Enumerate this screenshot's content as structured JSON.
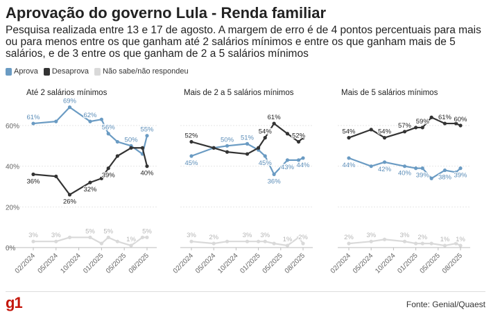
{
  "title": "Aprovação do governo Lula - Renda familiar",
  "subtitle": "Pesquisa realizada entre 13 e 17 de agosto. A margem de erro é de 4 pontos percentuais para mais ou para menos entre os que ganham até 2 salários mínimos e entre os que ganham mais de 5 salários, e de 3 entre os que ganham de 2 a 5 salários mínimos",
  "legend": [
    {
      "label": "Aprova",
      "color": "#6a9bc3"
    },
    {
      "label": "Desaprova",
      "color": "#333333"
    },
    {
      "label": "Não sabe/não respondeu",
      "color": "#d9d9d9"
    }
  ],
  "source": "Fonte: Genial/Quaest",
  "logo": "g1",
  "chart_data": [
    {
      "type": "line",
      "panel_title": "Até 2 salários mínimos",
      "x_ticks": [
        "02/2024",
        "05/2024",
        "10/2024",
        "01/2025",
        "05/2025",
        "08/2025"
      ],
      "y_ticks": [
        "0%",
        "20%",
        "40%",
        "60%"
      ],
      "ylim": [
        0,
        70
      ],
      "series": [
        {
          "name": "Aprova",
          "color": "#6a9bc3",
          "x": [
            0,
            1,
            1.6,
            2.5,
            3,
            3.3,
            3.7,
            4.3,
            4.8,
            5
          ],
          "y": [
            61,
            62,
            69,
            62,
            63,
            56,
            52,
            50,
            46,
            55
          ],
          "labels": [
            [
              0,
              "61%"
            ],
            [
              2,
              "69%"
            ],
            [
              3,
              "62%"
            ],
            [
              5,
              "56%"
            ],
            [
              7,
              "50%"
            ],
            [
              9,
              "55%"
            ]
          ]
        },
        {
          "name": "Desaprova",
          "color": "#333333",
          "x": [
            0,
            1,
            1.6,
            2.5,
            3,
            3.3,
            3.7,
            4.3,
            4.8,
            5
          ],
          "y": [
            36,
            35,
            26,
            32,
            34,
            39,
            45,
            49,
            49,
            40
          ],
          "labels": [
            [
              0,
              "36%"
            ],
            [
              2,
              "26%"
            ],
            [
              3,
              "32%"
            ],
            [
              5,
              "39%"
            ],
            [
              9,
              "40%"
            ]
          ]
        },
        {
          "name": "Não sabe/não respondeu",
          "color": "#d9d9d9",
          "x": [
            0,
            1,
            1.6,
            2.5,
            3,
            3.3,
            3.7,
            4.3,
            4.8,
            5
          ],
          "y": [
            3,
            3,
            5,
            5,
            2,
            5,
            3,
            1,
            5,
            5
          ],
          "labels": [
            [
              0,
              "3%"
            ],
            [
              1,
              "3%"
            ],
            [
              3,
              "5%"
            ],
            [
              5,
              "5%"
            ],
            [
              7,
              "1%"
            ],
            [
              9,
              "5%"
            ]
          ]
        }
      ]
    },
    {
      "type": "line",
      "panel_title": "Mais de 2 a 5 salários mínimos",
      "x_ticks": [
        "02/2024",
        "05/2024",
        "10/2024",
        "01/2025",
        "05/2025",
        "08/2025"
      ],
      "y_ticks": [
        "0%",
        "20%",
        "40%",
        "60%"
      ],
      "ylim": [
        0,
        70
      ],
      "series": [
        {
          "name": "Aprova",
          "color": "#6a9bc3",
          "x": [
            0,
            1,
            1.6,
            2.5,
            3,
            3.3,
            3.7,
            4.3,
            4.8,
            5
          ],
          "y": [
            45,
            49,
            50,
            51,
            48,
            45,
            36,
            43,
            43,
            44
          ],
          "labels": [
            [
              0,
              "45%"
            ],
            [
              2,
              "50%"
            ],
            [
              3,
              "51%"
            ],
            [
              5,
              "45%"
            ],
            [
              6,
              "36%"
            ],
            [
              7,
              "43%"
            ],
            [
              9,
              "44%"
            ]
          ]
        },
        {
          "name": "Desaprova",
          "color": "#333333",
          "x": [
            0,
            1,
            1.6,
            2.5,
            3,
            3.3,
            3.7,
            4.3,
            4.8,
            5
          ],
          "y": [
            52,
            49,
            47,
            46,
            49,
            54,
            61,
            56,
            52,
            54
          ],
          "labels": [
            [
              0,
              "52%"
            ],
            [
              5,
              "54%"
            ],
            [
              6,
              "61%"
            ],
            [
              8,
              "52%"
            ]
          ]
        },
        {
          "name": "Não sabe/não respondeu",
          "color": "#d9d9d9",
          "x": [
            0,
            1,
            1.6,
            2.5,
            3,
            3.3,
            3.7,
            4.3,
            4.8,
            5
          ],
          "y": [
            3,
            2,
            3,
            3,
            3,
            3,
            2,
            1,
            5,
            2
          ],
          "labels": [
            [
              0,
              "3%"
            ],
            [
              1,
              "2%"
            ],
            [
              3,
              "3%"
            ],
            [
              5,
              "3%"
            ],
            [
              7,
              "1%"
            ],
            [
              9,
              "2%"
            ]
          ]
        }
      ]
    },
    {
      "type": "line",
      "panel_title": "Mais de 5 salários mínimos",
      "x_ticks": [
        "02/2024",
        "05/2024",
        "10/2024",
        "01/2025",
        "05/2025",
        "08/2025"
      ],
      "y_ticks": [
        "0%",
        "20%",
        "40%",
        "60%"
      ],
      "ylim": [
        0,
        70
      ],
      "series": [
        {
          "name": "Aprova",
          "color": "#6a9bc3",
          "x": [
            0,
            1,
            1.6,
            2.5,
            3,
            3.3,
            3.7,
            4.3,
            4.8,
            5
          ],
          "y": [
            44,
            40,
            42,
            40,
            39,
            39,
            34,
            38,
            37,
            39
          ],
          "labels": [
            [
              0,
              "44%"
            ],
            [
              2,
              "42%"
            ],
            [
              3,
              "40%"
            ],
            [
              5,
              "39%"
            ],
            [
              7,
              "38%"
            ],
            [
              9,
              "39%"
            ]
          ]
        },
        {
          "name": "Desaprova",
          "color": "#333333",
          "x": [
            0,
            1,
            1.6,
            2.5,
            3,
            3.3,
            3.7,
            4.3,
            4.8,
            5
          ],
          "y": [
            54,
            58,
            54,
            57,
            59,
            59,
            64,
            61,
            61,
            60
          ],
          "labels": [
            [
              0,
              "54%"
            ],
            [
              2,
              "54%"
            ],
            [
              3,
              "57%"
            ],
            [
              5,
              "59%"
            ],
            [
              7,
              "61%"
            ],
            [
              9,
              "60%"
            ]
          ]
        },
        {
          "name": "Não sabe/não respondeu",
          "color": "#d9d9d9",
          "x": [
            0,
            1,
            1.6,
            2.5,
            3,
            3.3,
            3.7,
            4.3,
            4.8,
            5
          ],
          "y": [
            2,
            3,
            4,
            3,
            2,
            2,
            2,
            1,
            2,
            1
          ],
          "labels": [
            [
              0,
              "2%"
            ],
            [
              1,
              "3%"
            ],
            [
              3,
              "3%"
            ],
            [
              5,
              "2%"
            ],
            [
              7,
              "1%"
            ],
            [
              9,
              "1%"
            ]
          ]
        }
      ]
    }
  ]
}
